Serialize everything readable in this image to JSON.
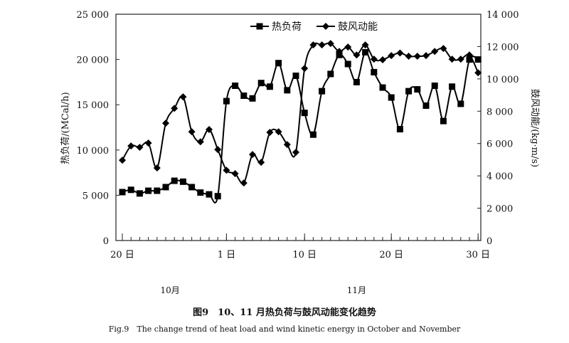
{
  "chart_data": {
    "type": "line",
    "title": "图9　10、11 月热负荷与鼓风动能变化趋势",
    "subtitle": "Fig.9　The change trend of heat load and wind kinetic energy in October and November",
    "ylabel": "热负荷/(MCal/h)",
    "ylabel_right": "鼓风动能/(kg·m/s)",
    "ylim": [
      0,
      25000
    ],
    "ylim_right": [
      0,
      14000
    ],
    "yticks": [
      "0",
      "5 000",
      "10 000",
      "15 000",
      "20 000",
      "25 000"
    ],
    "yticks_right": [
      "0",
      "2 000",
      "4 000",
      "6 000",
      "8 000",
      "10 000",
      "12 000",
      "14 000"
    ],
    "xtick_labels": [
      {
        "label": "20 日",
        "index": 0
      },
      {
        "label": "1 日",
        "index": 12
      },
      {
        "label": "10 日",
        "index": 21
      },
      {
        "label": "20 日",
        "index": 31
      },
      {
        "label": "30 日",
        "index": 41
      }
    ],
    "month_labels": [
      {
        "label": "10月",
        "index": 5.5
      },
      {
        "label": "11月",
        "index": 27
      }
    ],
    "x": [
      "10-20",
      "10-21",
      "10-22",
      "10-23",
      "10-24",
      "10-25",
      "10-26",
      "10-27",
      "10-28",
      "10-29",
      "10-30",
      "10-31",
      "11-01",
      "11-02",
      "11-03",
      "11-04",
      "11-05",
      "11-06",
      "11-07",
      "11-08",
      "11-09",
      "11-10",
      "11-11",
      "11-12",
      "11-13",
      "11-14",
      "11-15",
      "11-16",
      "11-17",
      "11-18",
      "11-19",
      "11-20",
      "11-21",
      "11-22",
      "11-23",
      "11-24",
      "11-25",
      "11-26",
      "11-27",
      "11-28",
      "11-29",
      "11-30"
    ],
    "legend_position": "top-center",
    "grid": false,
    "series": [
      {
        "name": "热负荷",
        "axis": "left",
        "marker": "square",
        "values": [
          5350,
          5600,
          5200,
          5500,
          5500,
          5900,
          6600,
          6500,
          5900,
          5300,
          5100,
          4900,
          15400,
          17100,
          16000,
          15700,
          17400,
          17000,
          19600,
          16600,
          18200,
          14100,
          11700,
          16500,
          18400,
          20500,
          19500,
          17500,
          20800,
          18600,
          16900,
          15800,
          12300,
          16500,
          16700,
          14900,
          17100,
          13200,
          17000,
          15100,
          20000,
          20000
        ]
      },
      {
        "name": "鼓风动能",
        "axis": "right",
        "marker": "diamond",
        "values": [
          4970,
          5850,
          5770,
          6030,
          4490,
          7260,
          8180,
          8890,
          6730,
          6110,
          6870,
          5630,
          4350,
          4140,
          3560,
          5320,
          4840,
          6690,
          6730,
          5940,
          5460,
          10650,
          12100,
          12100,
          12190,
          11700,
          11970,
          11480,
          12100,
          11220,
          11180,
          11440,
          11600,
          11400,
          11400,
          11440,
          11700,
          11880,
          11220,
          11220,
          11480,
          10380
        ]
      }
    ]
  }
}
